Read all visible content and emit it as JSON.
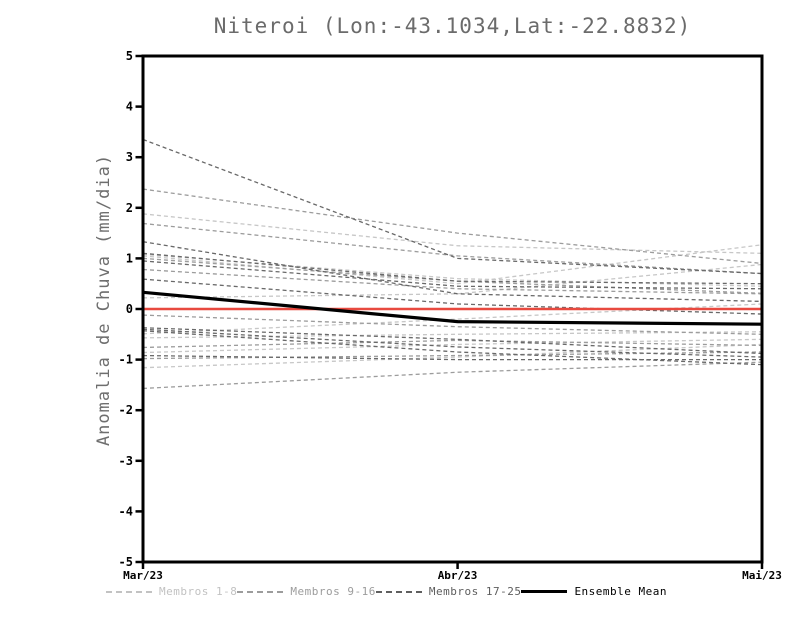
{
  "page_title": "Niteroi (Lon:-43.1034,Lat:-22.8832)",
  "chart_data": {
    "type": "line",
    "title": "Niteroi (Lon:-43.1034,Lat:-22.8832)",
    "xlabel": "",
    "ylabel": "Anomalia de Chuva (mm/dia)",
    "x_categories": [
      "Mar/23",
      "Abr/23",
      "Mai/23"
    ],
    "ylim": [
      -5,
      5
    ],
    "yticks": [
      5,
      4,
      3,
      2,
      1,
      0,
      -1,
      -2,
      -3,
      -4,
      -5
    ],
    "grid": false,
    "legend_position": "bottom",
    "axis_color": "#000000",
    "groups": {
      "Membros 1-8": {
        "color": "#c7c7c7",
        "style": "dashed"
      },
      "Membros 9-16": {
        "color": "#9c9c9c",
        "style": "dashed"
      },
      "Membros 17-25": {
        "color": "#696969",
        "style": "dashed"
      }
    },
    "series": [
      {
        "group": "Membros 1-8",
        "values": [
          1.88,
          1.25,
          1.1
        ]
      },
      {
        "group": "Membros 1-8",
        "values": [
          1.05,
          0.5,
          1.27
        ]
      },
      {
        "group": "Membros 1-8",
        "values": [
          0.22,
          0.3,
          0.88
        ]
      },
      {
        "group": "Membros 1-8",
        "values": [
          -0.49,
          -0.2,
          0.1
        ]
      },
      {
        "group": "Membros 1-8",
        "values": [
          -0.57,
          -0.5,
          -0.45
        ]
      },
      {
        "group": "Membros 1-8",
        "values": [
          -0.86,
          -0.7,
          -0.6
        ]
      },
      {
        "group": "Membros 1-8",
        "values": [
          -1.16,
          -0.95,
          -0.7
        ]
      },
      {
        "group": "Membros 1-8",
        "values": [
          1.08,
          0.6,
          0.45
        ]
      },
      {
        "group": "Membros 9-16",
        "values": [
          2.37,
          1.5,
          0.9
        ]
      },
      {
        "group": "Membros 9-16",
        "values": [
          1.69,
          1.05,
          0.7
        ]
      },
      {
        "group": "Membros 9-16",
        "values": [
          1.0,
          0.55,
          0.31
        ]
      },
      {
        "group": "Membros 9-16",
        "values": [
          -0.12,
          -0.35,
          -0.5
        ]
      },
      {
        "group": "Membros 9-16",
        "values": [
          -0.76,
          -0.62,
          -0.72
        ]
      },
      {
        "group": "Membros 9-16",
        "values": [
          -0.98,
          -0.92,
          -0.85
        ]
      },
      {
        "group": "Membros 9-16",
        "values": [
          -1.57,
          -1.25,
          -1.05
        ]
      },
      {
        "group": "Membros 9-16",
        "values": [
          0.78,
          0.4,
          0.3
        ]
      },
      {
        "group": "Membros 17-25",
        "values": [
          3.35,
          1.0,
          0.7
        ]
      },
      {
        "group": "Membros 17-25",
        "values": [
          1.33,
          0.3,
          0.15
        ]
      },
      {
        "group": "Membros 17-25",
        "values": [
          1.1,
          0.55,
          0.5
        ]
      },
      {
        "group": "Membros 17-25",
        "values": [
          0.95,
          0.45,
          0.4
        ]
      },
      {
        "group": "Membros 17-25",
        "values": [
          0.59,
          0.1,
          -0.1
        ]
      },
      {
        "group": "Membros 17-25",
        "values": [
          -0.37,
          -0.6,
          -0.88
        ]
      },
      {
        "group": "Membros 17-25",
        "values": [
          -0.4,
          -0.75,
          -0.95
        ]
      },
      {
        "group": "Membros 17-25",
        "values": [
          -0.43,
          -0.85,
          -1.1
        ]
      },
      {
        "group": "Membros 17-25",
        "values": [
          -0.92,
          -1.0,
          -1.0
        ]
      }
    ],
    "zero_line": {
      "value": 0,
      "color": "#e8493f",
      "style": "solid"
    },
    "ensemble_mean": {
      "name": "Ensemble Mean",
      "color": "#000000",
      "values": [
        0.33,
        -0.25,
        -0.3
      ]
    },
    "legend": [
      {
        "label": "Membros 1-8",
        "color": "#c2c2c2",
        "line": "dashed"
      },
      {
        "label": "Membros 9-16",
        "color": "#9c9c9c",
        "line": "dashed"
      },
      {
        "label": "Membros 17-25",
        "color": "#5e5e5e",
        "line": "dashed"
      },
      {
        "label": "Ensemble Mean",
        "color": "#000000",
        "line": "solid"
      }
    ]
  }
}
